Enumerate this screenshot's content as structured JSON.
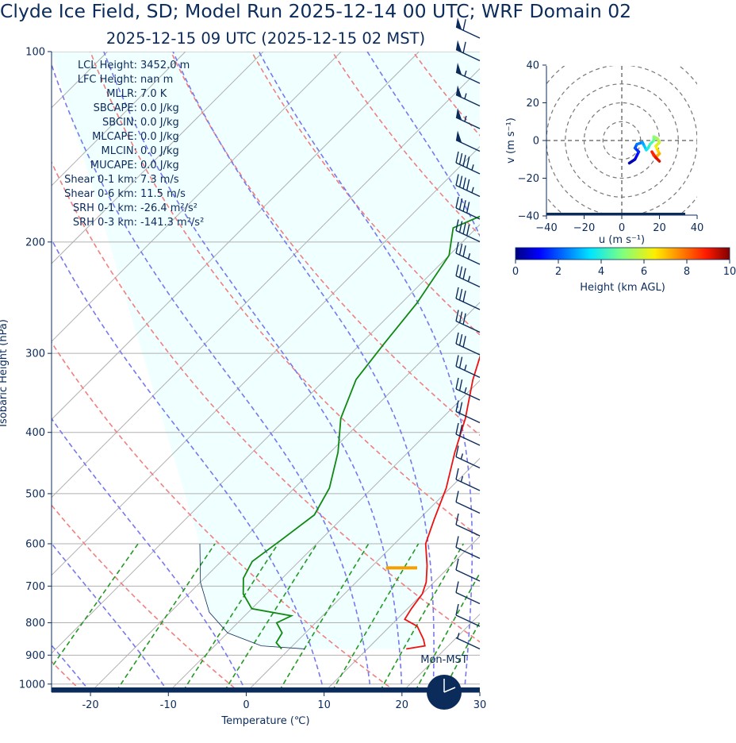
{
  "title": "Clyde Ice Field, SD; Model Run 2025-12-14 00 UTC; WRF Domain 02",
  "subtitle": "2025-12-15 09 UTC  (2025-12-15 02 MST)",
  "skewt": {
    "xlabel": "Temperature (℃)",
    "ylabel": "Isobaric Height (hPa)",
    "xlim": [
      -25,
      30
    ],
    "ylim": [
      1030,
      100
    ],
    "x_ticks": [
      -20,
      -10,
      0,
      10,
      20,
      30
    ],
    "y_ticks": [
      100,
      200,
      300,
      400,
      500,
      600,
      700,
      800,
      900,
      1000
    ],
    "stats": [
      {
        "label": "LCL Height:",
        "value": "3452.0 m"
      },
      {
        "label": "LFC Height:",
        "value": "nan m"
      },
      {
        "label": "MLLR:",
        "value": "7.0 K"
      },
      {
        "label": "SBCAPE:",
        "value": "0.0 J/kg"
      },
      {
        "label": "SBCIN:",
        "value": "0.0 J/kg"
      },
      {
        "label": "MLCAPE:",
        "value": "0.0 J/kg"
      },
      {
        "label": "MLCIN:",
        "value": "0.0 J/kg"
      },
      {
        "label": "MUCAPE:",
        "value": "0.0 J/kg"
      },
      {
        "label": "Shear 0-1 km:",
        "value": "7.3 m/s"
      },
      {
        "label": "Shear 0-6 km:",
        "value": "11.5 m/s"
      },
      {
        "label": "SRH 0-1 km:",
        "value": "-26.4 m²/s²"
      },
      {
        "label": "SRH 0-3 km:",
        "value": "-141.3 m²/s²"
      }
    ],
    "clock_label": "Mon-MST"
  },
  "hodograph": {
    "xlabel": "u (m s⁻¹)",
    "ylabel": "v (m s⁻¹)",
    "ticks": [
      -40,
      -20,
      0,
      20,
      40
    ],
    "colorbar_label": "Height (km AGL)",
    "colorbar_ticks": [
      0,
      2,
      4,
      6,
      8,
      10
    ]
  },
  "chart_data": [
    {
      "type": "line",
      "name": "skew-T log-p sounding",
      "series": [
        {
          "name": "temperature",
          "color": "#ee1111",
          "points": [
            [
              1.4,
              100
            ],
            [
              -1.8,
              120
            ],
            [
              -4.8,
              140
            ],
            [
              -9.5,
              170
            ],
            [
              -14.5,
              190
            ],
            [
              -17,
              210
            ],
            [
              -18,
              240
            ],
            [
              -15,
              280
            ],
            [
              -11,
              330
            ],
            [
              -7,
              380
            ],
            [
              -4,
              430
            ],
            [
              -0.5,
              490
            ],
            [
              2,
              550
            ],
            [
              4,
              600
            ],
            [
              7,
              650
            ],
            [
              9,
              690
            ],
            [
              10,
              720
            ],
            [
              10.5,
              760
            ],
            [
              11,
              790
            ],
            [
              13.5,
              810
            ],
            [
              16,
              850
            ],
            [
              17,
              870
            ],
            [
              15,
              880
            ]
          ]
        },
        {
          "name": "dewpoint",
          "color": "#118811",
          "points": [
            [
              -16,
              100
            ],
            [
              -20,
              130
            ],
            [
              -25,
              160
            ],
            [
              -33,
              190
            ],
            [
              -30,
              210
            ],
            [
              -28,
              250
            ],
            [
              -27,
              290
            ],
            [
              -26,
              330
            ],
            [
              -23,
              380
            ],
            [
              -19,
              430
            ],
            [
              -15.5,
              490
            ],
            [
              -14,
              540
            ],
            [
              -15,
              590
            ],
            [
              -16,
              640
            ],
            [
              -15,
              680
            ],
            [
              -13,
              720
            ],
            [
              -10,
              760
            ],
            [
              -4,
              780
            ],
            [
              -5,
              800
            ],
            [
              -3,
              830
            ],
            [
              -2.5,
              860
            ],
            [
              -1,
              880
            ]
          ]
        },
        {
          "name": "parcel",
          "color": "#0b2b5a",
          "points": [
            [
              -25,
              600
            ],
            [
              -20,
              690
            ],
            [
              -15,
              770
            ],
            [
              -10,
              830
            ],
            [
              -4,
              870
            ],
            [
              2,
              880
            ]
          ]
        }
      ],
      "lcl_marker": {
        "color": "#f5a000",
        "temperature_range": [
          2,
          6
        ],
        "pressure": 655
      },
      "wind_barbs_speeds_kt": [
        60,
        60,
        55,
        55,
        55,
        50,
        45,
        45,
        40,
        40,
        35,
        35,
        30,
        30,
        30,
        25,
        25,
        20,
        20,
        15,
        15,
        10,
        10,
        10,
        10,
        10,
        10,
        5
      ]
    },
    {
      "type": "line",
      "name": "hodograph",
      "x": [
        4,
        7,
        8,
        9,
        7,
        8,
        11,
        12,
        13,
        14,
        15,
        17,
        17,
        19,
        20,
        18,
        19,
        20,
        18,
        19,
        17,
        16,
        18,
        20
      ],
      "y": [
        -12,
        -10,
        -8,
        -6,
        -4,
        -2,
        -1,
        -3,
        -5,
        -4,
        -2,
        0,
        2,
        1,
        -1,
        -3,
        -5,
        -7,
        -9,
        -10,
        -8,
        -6,
        -9,
        -11
      ],
      "heights_km": [
        0.0,
        0.4,
        0.8,
        1.2,
        1.6,
        2.0,
        2.4,
        2.8,
        3.2,
        3.6,
        4.0,
        4.4,
        4.8,
        5.2,
        5.6,
        6.0,
        6.4,
        6.8,
        7.2,
        7.6,
        8.0,
        8.4,
        8.8,
        9.2
      ],
      "xlim": [
        -40,
        40
      ],
      "ylim": [
        -40,
        40
      ],
      "colorbar_range": [
        0,
        10
      ]
    }
  ]
}
